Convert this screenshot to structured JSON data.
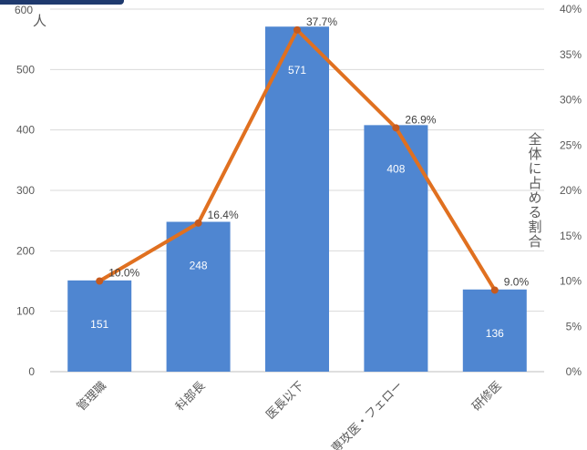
{
  "chart_data": {
    "type": "bar",
    "categories": [
      "管理職",
      "科部長",
      "医長以下",
      "専攻医・フェロー",
      "研修医"
    ],
    "series": [
      {
        "type": "bar",
        "values": [
          151,
          248,
          571,
          408,
          136
        ],
        "color": "#4f86d1"
      },
      {
        "type": "line",
        "values": [
          10.0,
          16.4,
          37.7,
          26.9,
          9.0
        ],
        "value_labels": [
          "10.0%",
          "16.4%",
          "37.7%",
          "26.9%",
          "9.0%"
        ],
        "color": "#e07020"
      }
    ],
    "y_axis": {
      "label": "人",
      "ylim": [
        0,
        600
      ],
      "ticks": [
        "0",
        "100",
        "200",
        "300",
        "400",
        "500",
        "600"
      ]
    },
    "y2_axis": {
      "label": "全体に占める割合",
      "ylim": [
        0,
        40
      ],
      "ticks": [
        "0%",
        "5%",
        "10%",
        "15%",
        "20%",
        "25%",
        "30%",
        "35%",
        "40%"
      ]
    },
    "grid": true
  }
}
